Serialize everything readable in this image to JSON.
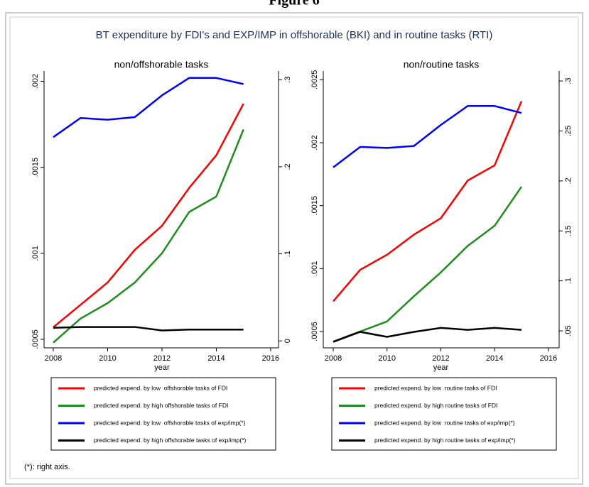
{
  "header": "Figure 6",
  "title": "BT expenditure by FDI's and EXP/IMP in offshorable (BKI) and in routine tasks (RTI)",
  "footnote": "(*): right axis.",
  "chart_data": [
    {
      "type": "line",
      "subtitle": "non/offshorable tasks",
      "x_label": "year",
      "x": [
        2008,
        2009,
        2010,
        2011,
        2012,
        2013,
        2014,
        2015
      ],
      "xlim": [
        2007.66,
        2016.29
      ],
      "xticks": [
        2008,
        2010,
        2012,
        2014,
        2016
      ],
      "ylim": [
        0.00045,
        0.00206
      ],
      "yticks": [
        {
          "value": 0.0005,
          "label": ".0005"
        },
        {
          "value": 0.001,
          "label": ".001"
        },
        {
          "value": 0.0015,
          "label": ".0015"
        },
        {
          "value": 0.002,
          "label": ".002"
        }
      ],
      "y2lim": [
        -0.008,
        0.31
      ],
      "y2ticks": [
        0,
        {
          "value": 0.1,
          "label": ".1"
        },
        {
          "value": 0.2,
          "label": ".2"
        },
        {
          "value": 0.3,
          "label": ".3"
        }
      ],
      "series": [
        {
          "name": "predicted expend. by low  offshorable tasks of FDI",
          "color": "#ff0000",
          "values": [
            0.00057,
            0.0007,
            0.00083,
            0.00102,
            0.00116,
            0.00138,
            0.00157,
            0.00187
          ]
        },
        {
          "name": "predicted expend. by high offshorable tasks of FDI",
          "color": "#1e8c1e",
          "values": [
            0.00048,
            0.00062,
            0.00071,
            0.00083,
            0.001,
            0.00124,
            0.00133,
            0.00172
          ]
        },
        {
          "name": "predicted expend. by low  offshorable tasks of exp/imp(*)",
          "color": "#0000ff",
          "axis": "y2",
          "values": [
            0.234,
            0.256,
            0.254,
            0.257,
            0.282,
            0.302,
            0.302,
            0.295
          ]
        },
        {
          "name": "predicted expend. by high offshorable tasks of exp/imp(*)",
          "color": "#000000",
          "axis": "y2",
          "values": [
            0.015,
            0.016,
            0.016,
            0.016,
            0.012,
            0.013,
            0.013,
            0.013
          ]
        }
      ]
    },
    {
      "type": "line",
      "subtitle": "non/routine tasks",
      "x_label": "year",
      "x": [
        2008,
        2009,
        2010,
        2011,
        2012,
        2013,
        2014,
        2015
      ],
      "xlim": [
        2007.63,
        2016.4
      ],
      "xticks": [
        2008,
        2010,
        2012,
        2014,
        2016
      ],
      "ylim": [
        0.00037,
        0.00257
      ],
      "yticks": [
        {
          "value": 0.0005,
          "label": ".0005"
        },
        {
          "value": 0.001,
          "label": ".001"
        },
        {
          "value": 0.0015,
          "label": ".0015"
        },
        {
          "value": 0.002,
          "label": ".002"
        },
        {
          "value": 0.0025,
          "label": ".0025"
        }
      ],
      "y2lim": [
        0.033,
        0.31
      ],
      "y2ticks": [
        {
          "value": 0.05,
          "label": ".05"
        },
        {
          "value": 0.1,
          "label": ".1"
        },
        {
          "value": 0.15,
          "label": ".15"
        },
        {
          "value": 0.2,
          "label": ".2"
        },
        {
          "value": 0.25,
          "label": ".25"
        },
        {
          "value": 0.3,
          "label": ".3"
        }
      ],
      "series": [
        {
          "name": "predicted expend. by low  routine tasks of FDI",
          "color": "#ff0000",
          "values": [
            0.00074,
            0.00099,
            0.00111,
            0.00127,
            0.0014,
            0.0017,
            0.00182,
            0.00233
          ]
        },
        {
          "name": "predicted expend. by high routine tasks of FDI",
          "color": "#1e8c1e",
          "values": [
            0.00042,
            0.0005,
            0.00058,
            0.00078,
            0.00097,
            0.00118,
            0.00134,
            0.00165
          ]
        },
        {
          "name": "predicted expend. by low  routine tasks of exp/imp(*)",
          "color": "#0000ff",
          "axis": "y2",
          "values": [
            0.2136,
            0.234,
            0.233,
            0.235,
            0.256,
            0.275,
            0.275,
            0.268
          ]
        },
        {
          "name": "predicted expend. by high routine tasks of exp/imp(*)",
          "color": "#000000",
          "axis": "y2",
          "values": [
            0.039,
            0.049,
            0.044,
            0.049,
            0.053,
            0.051,
            0.053,
            0.051
          ]
        }
      ]
    }
  ]
}
